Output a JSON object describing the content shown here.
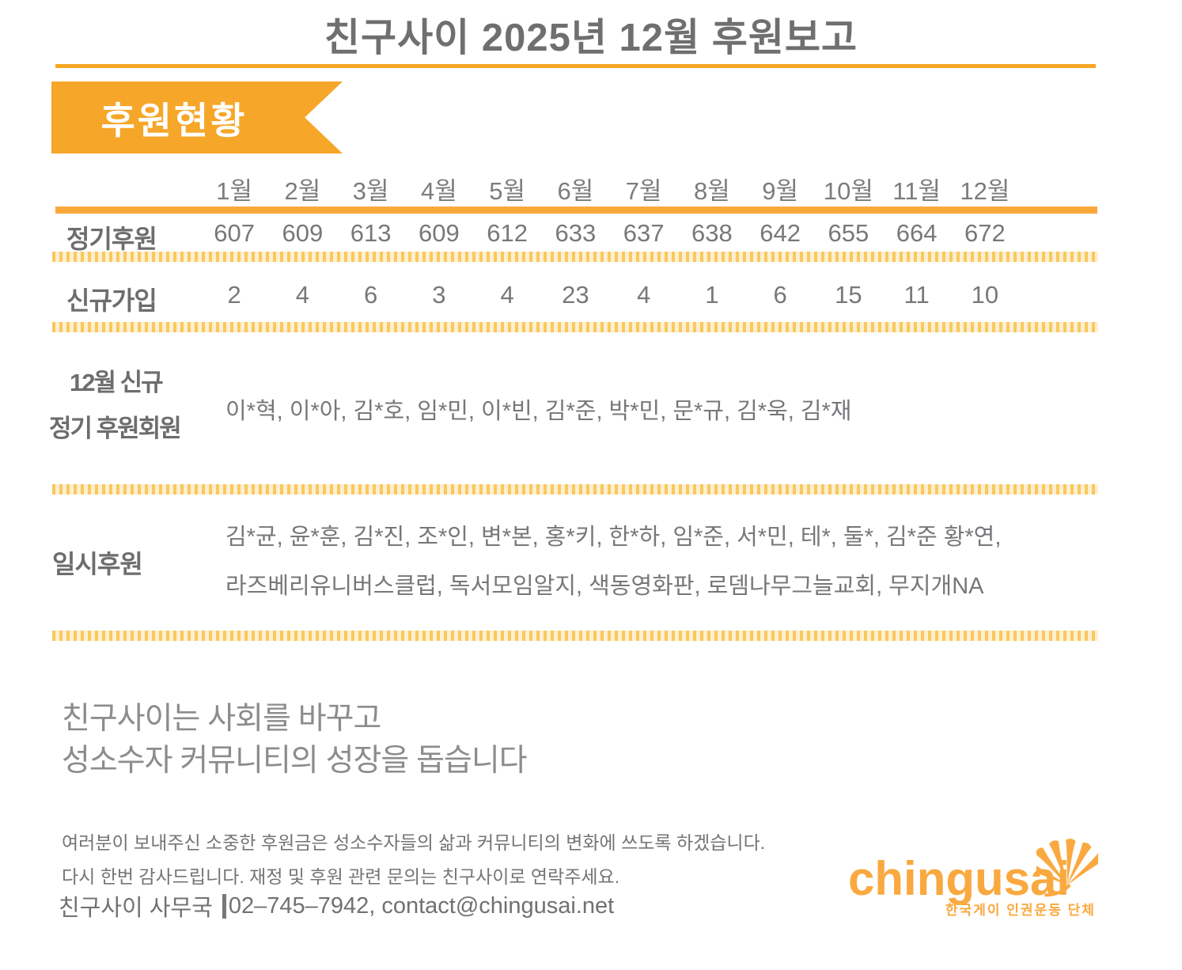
{
  "header": {
    "title": "친구사이 2025년 12월 후원보고",
    "section_badge": "후원현황"
  },
  "table": {
    "months": [
      "1월",
      "2월",
      "3월",
      "4월",
      "5월",
      "6월",
      "7월",
      "8월",
      "9월",
      "10월",
      "11월",
      "12월"
    ],
    "rows": [
      {
        "label": "정기후원",
        "values": [
          "607",
          "609",
          "613",
          "609",
          "612",
          "633",
          "637",
          "638",
          "642",
          "655",
          "664",
          "672"
        ]
      },
      {
        "label": "신규가입",
        "values": [
          "2",
          "4",
          "6",
          "3",
          "4",
          "23",
          "4",
          "1",
          "6",
          "15",
          "11",
          "10"
        ]
      }
    ]
  },
  "new_members": {
    "label_line1": "12월 신규",
    "label_line2": "정기 후원회원",
    "names": "이*혁, 이*아, 김*호, 임*민, 이*빈, 김*준, 박*민, 문*규, 김*욱, 김*재"
  },
  "one_time": {
    "label": "일시후원",
    "names_line1": "김*균, 윤*훈, 김*진, 조*인, 변*본, 홍*키, 한*하, 임*준, 서*민, 테*, 둘*, 김*준 황*연,",
    "names_line2": "라즈베리유니버스클럽, 독서모임알지, 색동영화판, 로뎀나무그늘교회, 무지개NA"
  },
  "slogan": {
    "line1": "친구사이는 사회를 바꾸고",
    "line2": "성소수자 커뮤니티의 성장을 돕습니다"
  },
  "footer": {
    "para1": "여러분이 보내주신 소중한 후원금은 성소수자들의 삶과 커뮤니티의 변화에 쓰도록 하겠습니다.",
    "para2": "다시 한번 감사드립니다. 재정 및 후원 관련 문의는 친구사이로 연락주세요.",
    "contact_org": "친구사이 사무국",
    "contact_detail": "02–745–7942, contact@chingusai.net"
  },
  "logo": {
    "wordmark": "chingusai",
    "tagline": "한국게이 인권운동 단체",
    "icon": "fan-leaf-icon"
  },
  "colors": {
    "accent_orange": "#F6A623",
    "rule_orange": "#F9A93C",
    "dotted_gold": "#FAC85C",
    "logo_orange": "#F9A93F",
    "title_gray": "#6E6F71",
    "body_gray": "#76777A"
  }
}
